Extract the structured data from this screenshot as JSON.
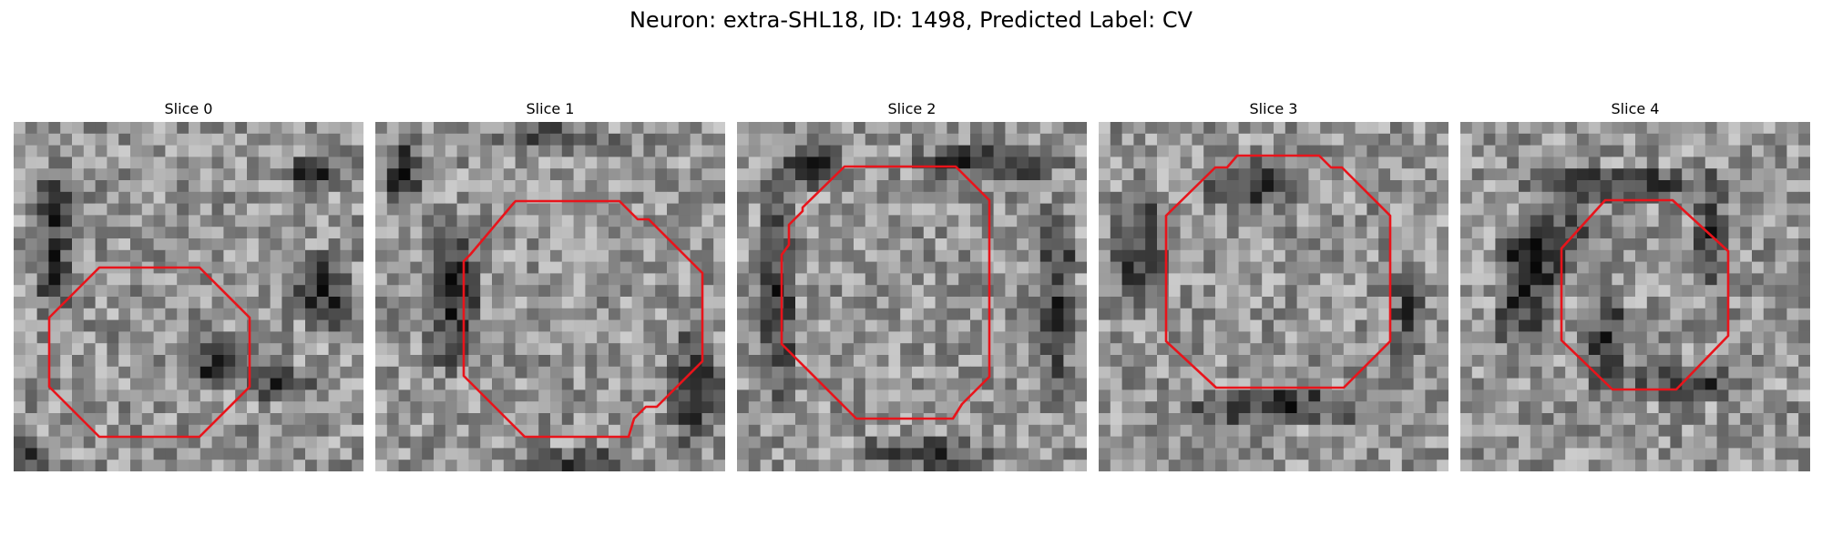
{
  "figure": {
    "title": "Neuron: extra-SHL18, ID: 1498, Predicted Label: CV"
  },
  "colors": {
    "contour": "#e8141b",
    "background": "#ffffff"
  },
  "panels": [
    {
      "title": "Slice 0"
    },
    {
      "title": "Slice 1"
    },
    {
      "title": "Slice 2"
    },
    {
      "title": "Slice 3"
    },
    {
      "title": "Slice 4"
    }
  ]
}
